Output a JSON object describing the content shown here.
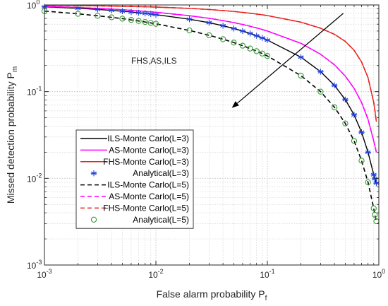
{
  "chart_data": {
    "type": "line",
    "title": "",
    "xlabel": "False alarm probability P",
    "xlabel_sub": "f",
    "ylabel": "Missed detection probability P",
    "ylabel_sub": "m",
    "xscale": "log",
    "yscale": "log",
    "xlim": [
      0.001,
      1
    ],
    "ylim": [
      0.001,
      1
    ],
    "grid": true,
    "minor_grid": true,
    "x_ticks": [
      {
        "value": 0.001,
        "base": "10",
        "exp": "-3"
      },
      {
        "value": 0.01,
        "base": "10",
        "exp": "-2"
      },
      {
        "value": 0.1,
        "base": "10",
        "exp": "-1"
      },
      {
        "value": 1,
        "base": "10",
        "exp": "0"
      }
    ],
    "y_ticks": [
      {
        "value": 0.001,
        "base": "10",
        "exp": "-3"
      },
      {
        "value": 0.01,
        "base": "10",
        "exp": "-2"
      },
      {
        "value": 0.1,
        "base": "10",
        "exp": "-1"
      },
      {
        "value": 1,
        "base": "10",
        "exp": "0"
      }
    ],
    "annotation": {
      "text": "FHS,AS,ILS",
      "arrow_from": [
        0.48,
        0.8
      ],
      "arrow_to": [
        0.048,
        0.065
      ],
      "text_at": [
        0.006,
        0.21
      ]
    },
    "legend_position": "bottom-left",
    "x": [
      0.001,
      0.002,
      0.003,
      0.004,
      0.005,
      0.006,
      0.007,
      0.008,
      0.009,
      0.01,
      0.02,
      0.03,
      0.04,
      0.05,
      0.06,
      0.07,
      0.08,
      0.09,
      0.1,
      0.2,
      0.3,
      0.4,
      0.5,
      0.6,
      0.7,
      0.8,
      0.9,
      0.92,
      0.95
    ],
    "series": [
      {
        "name": "ILS-Monte Carlo(L=3)",
        "color": "#000000",
        "style": "solid",
        "marker": "none",
        "values": [
          0.95,
          0.915,
          0.888,
          0.866,
          0.846,
          0.829,
          0.813,
          0.799,
          0.786,
          0.773,
          0.685,
          0.624,
          0.576,
          0.535,
          0.5,
          0.469,
          0.441,
          0.416,
          0.393,
          0.25,
          0.17,
          0.118,
          0.081,
          0.054,
          0.034,
          0.02,
          0.011,
          0.0099,
          0.0088
        ]
      },
      {
        "name": "AS-Monte Carlo(L=3)",
        "color": "#ff00ff",
        "style": "solid",
        "marker": "none",
        "values": [
          0.961,
          0.935,
          0.914,
          0.896,
          0.881,
          0.867,
          0.855,
          0.843,
          0.833,
          0.823,
          0.751,
          0.701,
          0.66,
          0.626,
          0.595,
          0.568,
          0.543,
          0.521,
          0.5,
          0.361,
          0.27,
          0.204,
          0.151,
          0.109,
          0.075,
          0.048,
          0.027,
          0.024,
          0.02
        ]
      },
      {
        "name": "FHS-Monte Carlo(L=3)",
        "color": "#e8231f",
        "style": "solid",
        "marker": "none",
        "values": [
          0.989,
          0.982,
          0.976,
          0.97,
          0.965,
          0.961,
          0.956,
          0.952,
          0.948,
          0.945,
          0.913,
          0.886,
          0.862,
          0.841,
          0.821,
          0.802,
          0.785,
          0.769,
          0.754,
          0.633,
          0.54,
          0.458,
          0.38,
          0.3,
          0.22,
          0.145,
          0.075,
          0.062,
          0.045
        ]
      },
      {
        "name": "Analytical(L=3)",
        "color": "#1f3fe0",
        "style": "none",
        "marker": "star",
        "values": [
          0.95,
          0.915,
          0.888,
          0.866,
          0.846,
          0.829,
          0.813,
          0.799,
          0.786,
          0.773,
          0.685,
          0.624,
          0.576,
          0.535,
          0.5,
          0.469,
          0.441,
          0.416,
          0.393,
          0.25,
          0.17,
          0.118,
          0.081,
          0.054,
          0.034,
          0.02,
          0.011,
          0.0099,
          0.0088
        ]
      },
      {
        "name": "ILS-Monte Carlo(L=5)",
        "color": "#000000",
        "style": "dashed",
        "marker": "none",
        "values": [
          0.85,
          0.79,
          0.75,
          0.72,
          0.695,
          0.672,
          0.653,
          0.636,
          0.62,
          0.606,
          0.508,
          0.447,
          0.403,
          0.368,
          0.339,
          0.314,
          0.293,
          0.275,
          0.258,
          0.153,
          0.1,
          0.066,
          0.043,
          0.027,
          0.016,
          0.009,
          0.0045,
          0.0038,
          0.0032
        ]
      },
      {
        "name": "AS-Monte Carlo(L=5)",
        "color": "#ff00ff",
        "style": "dashed",
        "marker": "none",
        "values": [
          0.961,
          0.935,
          0.914,
          0.896,
          0.881,
          0.867,
          0.855,
          0.843,
          0.833,
          0.823,
          0.751,
          0.701,
          0.66,
          0.626,
          0.595,
          0.568,
          0.543,
          0.521,
          0.5,
          0.361,
          0.27,
          0.204,
          0.151,
          0.109,
          0.075,
          0.048,
          0.027,
          0.024,
          0.02
        ]
      },
      {
        "name": "FHS-Monte Carlo(L=5)",
        "color": "#e8231f",
        "style": "dashed",
        "marker": "none",
        "values": [
          0.989,
          0.982,
          0.976,
          0.97,
          0.965,
          0.961,
          0.956,
          0.952,
          0.948,
          0.945,
          0.913,
          0.886,
          0.862,
          0.841,
          0.821,
          0.802,
          0.785,
          0.769,
          0.754,
          0.633,
          0.54,
          0.458,
          0.38,
          0.3,
          0.22,
          0.145,
          0.075,
          0.062,
          0.045
        ]
      },
      {
        "name": "Analytical(L=5)",
        "color": "#3a9a3a",
        "style": "none",
        "marker": "circle",
        "values": [
          0.85,
          0.79,
          0.75,
          0.72,
          0.695,
          0.672,
          0.653,
          0.636,
          0.62,
          0.606,
          0.508,
          0.447,
          0.403,
          0.368,
          0.339,
          0.314,
          0.293,
          0.275,
          0.258,
          0.153,
          0.1,
          0.066,
          0.043,
          0.027,
          0.016,
          0.009,
          0.0045,
          0.0038,
          0.0032
        ]
      }
    ]
  }
}
